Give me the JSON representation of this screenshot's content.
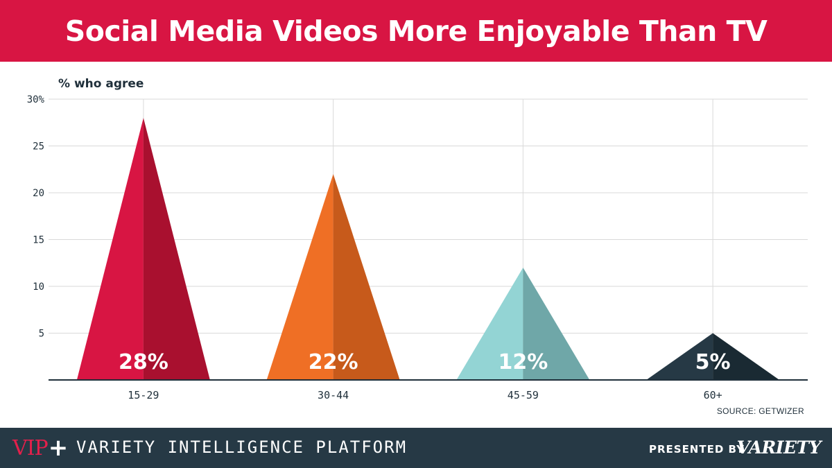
{
  "title": "Social Media Videos More Enjoyable Than TV",
  "source": "SOURCE: GETWIZER",
  "footer": {
    "brand_v": "VIP",
    "brand_plus": "+",
    "platform": "VARIETY INTELLIGENCE PLATFORM",
    "presented_by": "PRESENTED BY",
    "variety": "VARIETY"
  },
  "colors": {
    "title_bar": "#d81543",
    "footer": "#263945",
    "gridline": "#d9d9d9",
    "axis": "#1f2f3a"
  },
  "chart_data": {
    "type": "bar",
    "mark_shape": "triangle",
    "ylabel": "% who agree",
    "ylim": [
      0,
      30
    ],
    "yticks": [
      5,
      10,
      15,
      20,
      25,
      30
    ],
    "ytick_labels": [
      "5",
      "10",
      "15",
      "20",
      "25",
      "30%"
    ],
    "categories": [
      "15-29",
      "30-44",
      "45-59",
      "60+"
    ],
    "values": [
      28,
      22,
      12,
      5
    ],
    "value_labels": [
      "28%",
      "22%",
      "12%",
      "5%"
    ],
    "bar_colors": [
      {
        "light": "#d81543",
        "dark": "#a9102f"
      },
      {
        "light": "#ef6f25",
        "dark": "#c75a1b"
      },
      {
        "light": "#93d4d4",
        "dark": "#6fa7a8"
      },
      {
        "light": "#263945",
        "dark": "#1a2a33"
      }
    ],
    "grid": true,
    "legend": "none"
  }
}
